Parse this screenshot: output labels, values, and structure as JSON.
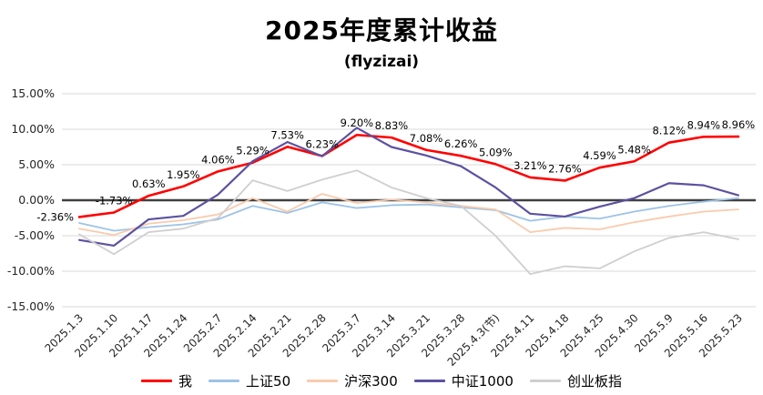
{
  "chart_data": {
    "type": "line",
    "title": "2025年度累计收益",
    "subtitle": "(flyzizai)",
    "categories": [
      "2025.1.3",
      "2025.1.10",
      "2025.1.17",
      "2025.1.24",
      "2025.2.7",
      "2025.2.14",
      "2025.2.21",
      "2025.2.28",
      "2025.3.7",
      "2025.3.14",
      "2025.3.21",
      "2025.3.28",
      "2025.4.3(节)",
      "2025.4.11",
      "2025.4.18",
      "2025.4.25",
      "2025.4.30",
      "2025.5.9",
      "2025.5.16",
      "2025.5.23"
    ],
    "ylim": [
      -15,
      15
    ],
    "ytick_step": 5,
    "ytick_labels": [
      "15.00%",
      "10.00%",
      "5.00%",
      "0.00%",
      "-5.00%",
      "-10.00%",
      "-15.00%"
    ],
    "grid": true,
    "legend_position": "bottom",
    "background": "#FFFFFF",
    "grid_color": "#D9D9D9",
    "axis_color": "#404040",
    "text_color": "#262626",
    "series": [
      {
        "name": "我",
        "color": "#FF0000",
        "width": 2.6,
        "data_labels": true,
        "values": [
          -2.36,
          -1.73,
          0.63,
          1.95,
          4.06,
          5.29,
          7.53,
          6.23,
          9.2,
          8.83,
          7.08,
          6.26,
          5.09,
          3.21,
          2.76,
          4.59,
          5.48,
          8.12,
          8.94,
          8.96
        ],
        "labels": [
          "-2.36%",
          "-1.73%",
          "0.63%",
          "1.95%",
          "4.06%",
          "5.29%",
          "7.53%",
          "6.23%",
          "9.20%",
          "8.83%",
          "7.08%",
          "6.26%",
          "5.09%",
          "3.21%",
          "2.76%",
          "4.59%",
          "5.48%",
          "8.12%",
          "8.94%",
          "8.96%"
        ]
      },
      {
        "name": "上证50",
        "color": "#9DC3E6",
        "width": 1.8,
        "data_labels": false,
        "values": [
          -3.2,
          -4.3,
          -3.8,
          -3.4,
          -2.7,
          -0.8,
          -1.8,
          -0.3,
          -1.1,
          -0.7,
          -0.6,
          -1.0,
          -1.4,
          -2.9,
          -2.3,
          -2.6,
          -1.6,
          -0.8,
          -0.2,
          0.3
        ]
      },
      {
        "name": "沪深300",
        "color": "#F8CBAD",
        "width": 1.8,
        "data_labels": false,
        "values": [
          -4.0,
          -4.9,
          -3.3,
          -2.8,
          -2.0,
          0.3,
          -1.6,
          0.9,
          -0.4,
          0.1,
          -0.3,
          -0.8,
          -1.3,
          -4.5,
          -3.9,
          -4.1,
          -3.1,
          -2.3,
          -1.6,
          -1.3
        ]
      },
      {
        "name": "中证1000",
        "color": "#5D51A0",
        "width": 2.2,
        "data_labels": false,
        "values": [
          -5.6,
          -6.4,
          -2.7,
          -2.2,
          0.8,
          5.5,
          8.2,
          6.2,
          10.2,
          7.5,
          6.3,
          4.8,
          1.8,
          -1.9,
          -2.3,
          -0.9,
          0.3,
          2.4,
          2.1,
          0.7
        ]
      },
      {
        "name": "创业板指",
        "color": "#D0CECE",
        "width": 1.8,
        "data_labels": false,
        "values": [
          -4.8,
          -7.6,
          -4.5,
          -4.0,
          -2.5,
          2.8,
          1.3,
          2.9,
          4.2,
          1.8,
          0.3,
          -0.8,
          -5.0,
          -10.4,
          -9.3,
          -9.6,
          -7.2,
          -5.3,
          -4.5,
          -5.5
        ]
      }
    ]
  }
}
